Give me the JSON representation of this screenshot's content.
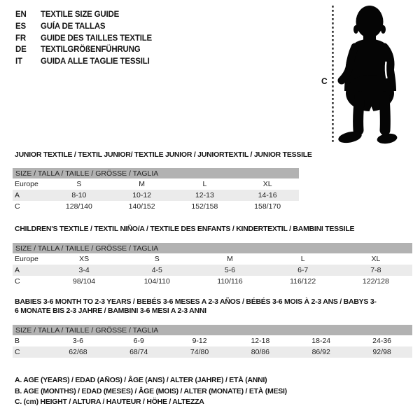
{
  "header": {
    "languages": [
      {
        "code": "EN",
        "label": "TEXTILE SIZE GUIDE"
      },
      {
        "code": "ES",
        "label": "GUÍA DE TALLAS"
      },
      {
        "code": "FR",
        "label": "GUIDE DES TAILLES TEXTILE"
      },
      {
        "code": "DE",
        "label": "TEXTILGRÖßENFÜHRUNG"
      },
      {
        "code": "IT",
        "label": "GUIDA ALLE TAGLIE TESSILI"
      }
    ]
  },
  "figure": {
    "height_label": "C",
    "icon": "toddler-silhouette"
  },
  "tables": [
    {
      "title": "JUNIOR TEXTILE / TEXTIL JUNIOR/ TEXTILE JUNIOR / JUNIORTEXTIL / JUNIOR TESSILE",
      "header": "SIZE / TALLA / TAILLE / GRÖSSE / TAGLIA",
      "rows": [
        {
          "label": "Europe",
          "values": [
            "S",
            "M",
            "L",
            "XL"
          ]
        },
        {
          "label": "A",
          "values": [
            "8-10",
            "10-12",
            "12-13",
            "14-16"
          ]
        },
        {
          "label": "C",
          "values": [
            "128/140",
            "140/152",
            "152/158",
            "158/170"
          ]
        }
      ]
    },
    {
      "title": "CHILDREN'S TEXTILE / TEXTIL NIÑO/A / TEXTILE DES ENFANTS / KINDERTEXTIL / BAMBINI TESSILE",
      "header": "SIZE / TALLA / TAILLE / GRÖSSE / TAGLIA",
      "rows": [
        {
          "label": "Europe",
          "values": [
            "XS",
            "S",
            "M",
            "L",
            "XL"
          ]
        },
        {
          "label": "A",
          "values": [
            "3-4",
            "4-5",
            "5-6",
            "6-7",
            "7-8"
          ]
        },
        {
          "label": "C",
          "values": [
            "98/104",
            "104/110",
            "110/116",
            "116/122",
            "122/128"
          ]
        }
      ]
    },
    {
      "title": "BABIES 3-6 MONTH TO 2-3 YEARS / BEBÉS 3-6 MESES A 2-3 AÑOS / BÉBÉS 3-6 MOIS À 2-3 ANS / BABYS 3-6 MONATE BIS 2-3 JAHRE / BAMBINI 3-6 MESI A 2-3 ANNI",
      "header": "SIZE / TALLA / TAILLE / GRÖSSE / TAGLIA",
      "rows": [
        {
          "label": "B",
          "values": [
            "3-6",
            "6-9",
            "9-12",
            "12-18",
            "18-24",
            "24-36"
          ]
        },
        {
          "label": "C",
          "values": [
            "62/68",
            "68/74",
            "74/80",
            "80/86",
            "86/92",
            "92/98"
          ]
        }
      ]
    }
  ],
  "legend": [
    "A. AGE (YEARS) / EDAD (AÑOS) / ÂGE (ANS) / ALTER (JAHRE) / ETÀ (ANNI)",
    "B. AGE (MONTHS) / EDAD (MESES) / ÂGE (MOIS) / ALTER (MONATE) / ETÀ (MESI)",
    "C. (cm) HEIGHT / ALTURA / HAUTEUR / HÖHE / ALTEZZA"
  ],
  "colors": {
    "table_header_bg": "#b2b2b2",
    "row_alt_bg": "#ebebeb",
    "text": "#161616",
    "silhouette": "#000000"
  }
}
